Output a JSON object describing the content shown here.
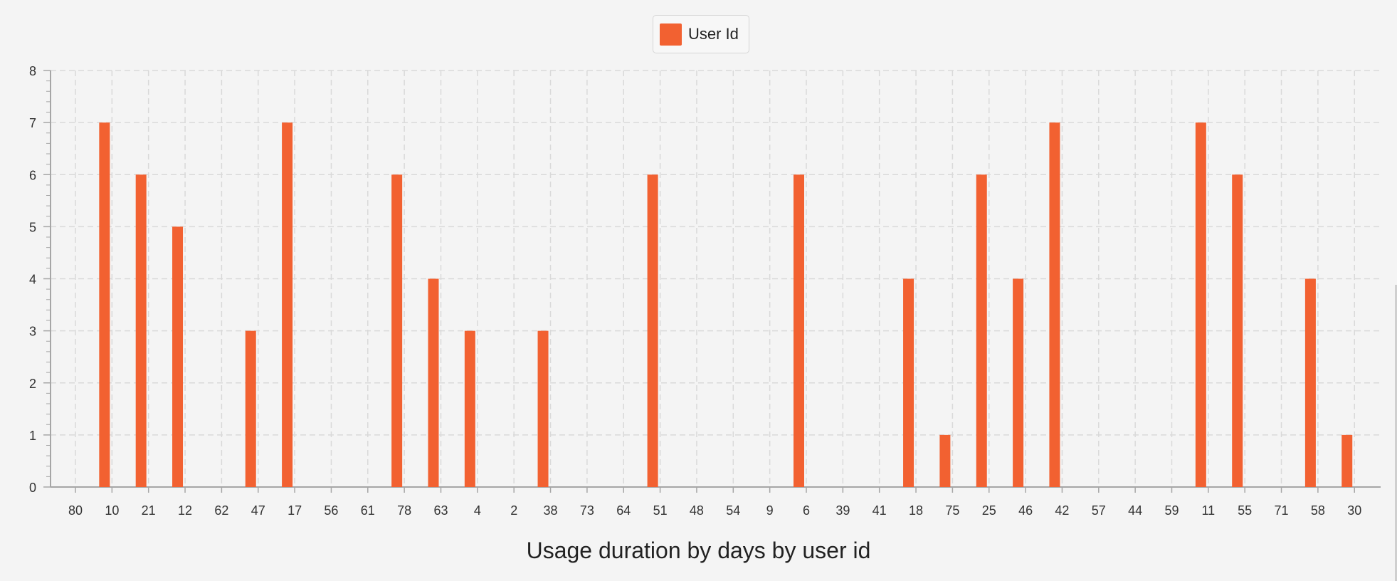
{
  "colors": {
    "bar": "#f26131",
    "grid": "#d9d9d9",
    "axis": "#a6a6a6",
    "tick_text": "#333333"
  },
  "chart_data": {
    "type": "bar",
    "title": "Usage duration by days by user id",
    "xlabel": "",
    "ylabel": "",
    "ylim": [
      0,
      8
    ],
    "yticks": [
      0,
      1,
      2,
      3,
      4,
      5,
      6,
      7,
      8
    ],
    "grid": true,
    "legend_position": "top-center",
    "categories": [
      "80",
      "10",
      "21",
      "12",
      "62",
      "47",
      "17",
      "56",
      "61",
      "78",
      "63",
      "4",
      "2",
      "38",
      "73",
      "64",
      "51",
      "48",
      "54",
      "9",
      "6",
      "39",
      "41",
      "18",
      "75",
      "25",
      "46",
      "42",
      "57",
      "44",
      "59",
      "11",
      "55",
      "71",
      "58",
      "30"
    ],
    "series": [
      {
        "name": "User Id",
        "values": [
          0,
          7,
          6,
          5,
          0,
          3,
          7,
          0,
          0,
          6,
          4,
          3,
          0,
          3,
          0,
          0,
          6,
          0,
          0,
          0,
          6,
          0,
          0,
          4,
          1,
          6,
          4,
          7,
          0,
          0,
          0,
          7,
          6,
          0,
          4,
          1
        ]
      }
    ]
  }
}
